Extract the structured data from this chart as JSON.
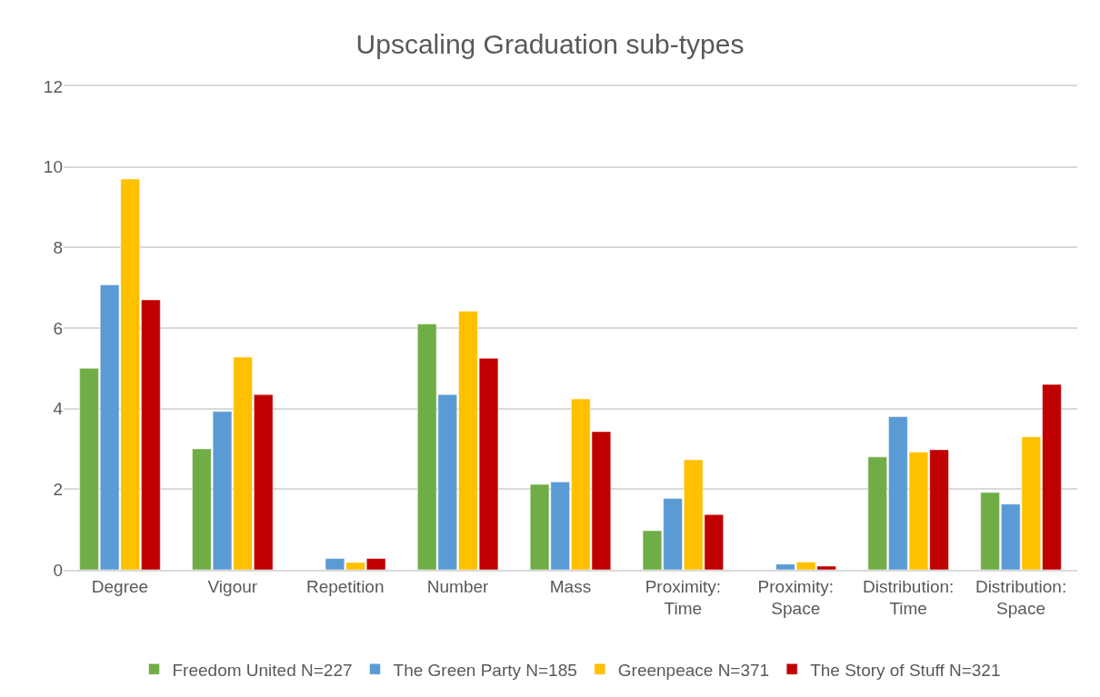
{
  "chart_data": {
    "type": "bar",
    "title": "Upscaling Graduation sub-types",
    "categories": [
      "Degree",
      "Vigour",
      "Repetition",
      "Number",
      "Mass",
      "Proximity:\nTime",
      "Proximity:\nSpace",
      "Distribution:\nTime",
      "Distribution:\nSpace"
    ],
    "series": [
      {
        "name": "Freedom United N=227",
        "color": "#70ad47",
        "values": [
          5.0,
          3.0,
          null,
          6.1,
          2.12,
          0.97,
          null,
          2.8,
          1.92
        ]
      },
      {
        "name": "The Green Party N=185",
        "color": "#5b9bd5",
        "values": [
          7.07,
          3.93,
          0.28,
          4.35,
          2.18,
          1.77,
          0.14,
          3.8,
          1.63
        ]
      },
      {
        "name": "Greenpeace N=371",
        "color": "#ffc000",
        "values": [
          9.7,
          5.28,
          0.18,
          6.42,
          4.24,
          2.73,
          0.19,
          2.92,
          3.3
        ]
      },
      {
        "name": "The Story of Stuff N=321",
        "color": "#c00000",
        "values": [
          6.7,
          4.35,
          0.28,
          5.25,
          3.43,
          1.37,
          0.09,
          2.98,
          4.6
        ]
      }
    ],
    "ylim": [
      0,
      12
    ],
    "yticks": [
      0,
      2,
      4,
      6,
      8,
      10,
      12
    ],
    "grid": "y",
    "legend": "bottom"
  }
}
